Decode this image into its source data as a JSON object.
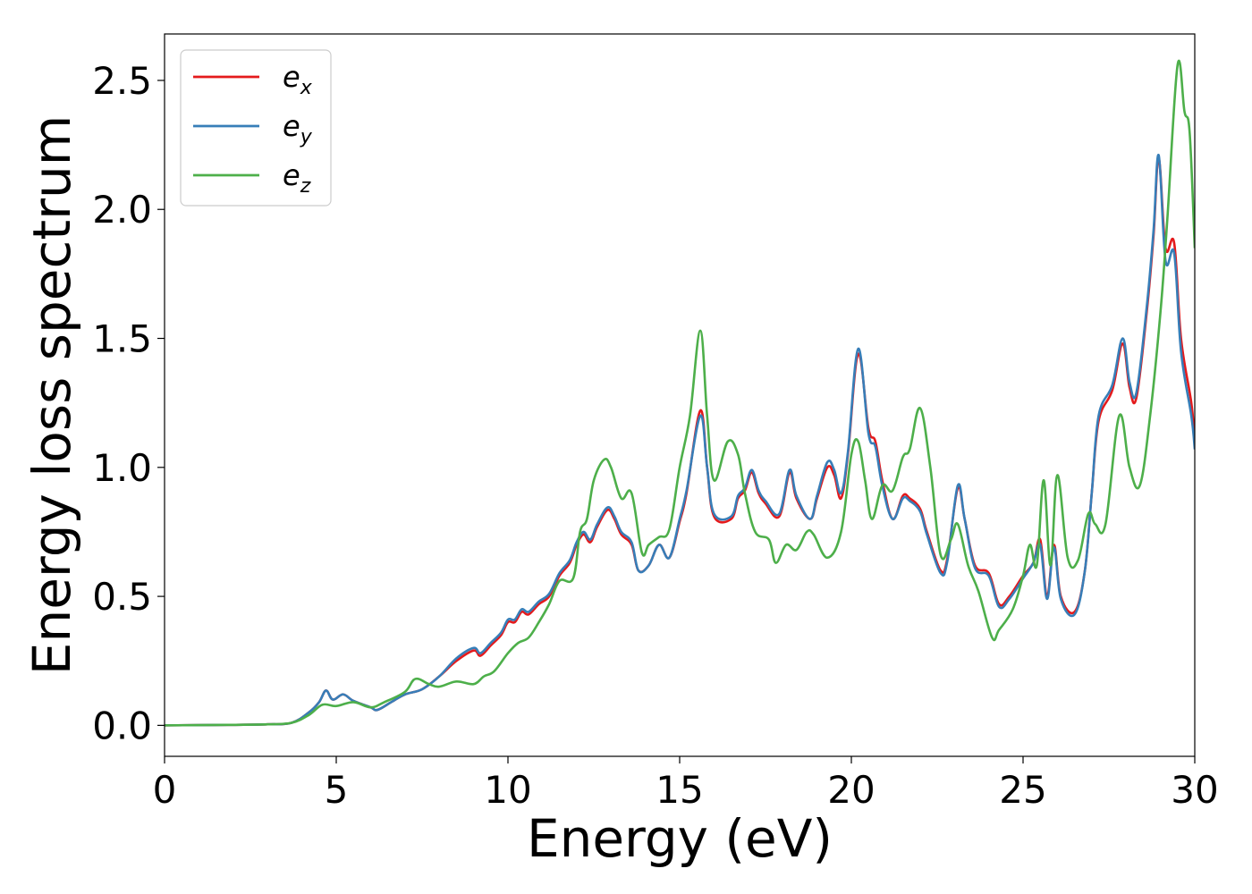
{
  "chart_data": {
    "type": "line",
    "title": "",
    "xlabel": "Energy (eV)",
    "ylabel": "Energy loss spectrum",
    "xlim": [
      0,
      30
    ],
    "ylim": [
      -0.12,
      2.68
    ],
    "xticks": [
      0,
      5,
      10,
      15,
      20,
      25,
      30
    ],
    "xtick_labels": [
      "0",
      "5",
      "10",
      "15",
      "20",
      "25",
      "30"
    ],
    "yticks": [
      0.0,
      0.5,
      1.0,
      1.5,
      2.0,
      2.5
    ],
    "ytick_labels": [
      "0.0",
      "0.5",
      "1.0",
      "1.5",
      "2.0",
      "2.5"
    ],
    "grid": false,
    "legend_position": "top-left",
    "series": [
      {
        "name": "e_x",
        "label_base": "e",
        "label_sub": "x",
        "color": "#e41a1c",
        "points": [
          [
            0,
            0
          ],
          [
            2,
            0.002
          ],
          [
            3,
            0.004
          ],
          [
            3.7,
            0.01
          ],
          [
            4.2,
            0.05
          ],
          [
            4.5,
            0.09
          ],
          [
            4.7,
            0.135
          ],
          [
            4.9,
            0.1
          ],
          [
            5.2,
            0.12
          ],
          [
            5.5,
            0.095
          ],
          [
            6.0,
            0.07
          ],
          [
            6.2,
            0.06
          ],
          [
            6.6,
            0.09
          ],
          [
            7.0,
            0.12
          ],
          [
            7.5,
            0.14
          ],
          [
            8.0,
            0.19
          ],
          [
            8.5,
            0.25
          ],
          [
            9.0,
            0.29
          ],
          [
            9.2,
            0.27
          ],
          [
            9.5,
            0.31
          ],
          [
            9.8,
            0.35
          ],
          [
            10.0,
            0.4
          ],
          [
            10.2,
            0.4
          ],
          [
            10.4,
            0.44
          ],
          [
            10.6,
            0.43
          ],
          [
            10.9,
            0.47
          ],
          [
            11.2,
            0.5
          ],
          [
            11.5,
            0.58
          ],
          [
            11.8,
            0.63
          ],
          [
            12.0,
            0.7
          ],
          [
            12.2,
            0.74
          ],
          [
            12.4,
            0.71
          ],
          [
            12.6,
            0.77
          ],
          [
            12.9,
            0.835
          ],
          [
            13.1,
            0.8
          ],
          [
            13.3,
            0.74
          ],
          [
            13.6,
            0.7
          ],
          [
            13.8,
            0.6
          ],
          [
            14.1,
            0.62
          ],
          [
            14.4,
            0.7
          ],
          [
            14.7,
            0.65
          ],
          [
            15.0,
            0.79
          ],
          [
            15.2,
            0.9
          ],
          [
            15.6,
            1.22
          ],
          [
            15.8,
            1.0
          ],
          [
            16.0,
            0.81
          ],
          [
            16.5,
            0.8
          ],
          [
            16.7,
            0.88
          ],
          [
            16.9,
            0.91
          ],
          [
            17.1,
            0.98
          ],
          [
            17.3,
            0.9
          ],
          [
            17.5,
            0.86
          ],
          [
            17.9,
            0.81
          ],
          [
            18.2,
            0.98
          ],
          [
            18.4,
            0.88
          ],
          [
            18.8,
            0.8
          ],
          [
            19.0,
            0.88
          ],
          [
            19.3,
            1.0
          ],
          [
            19.5,
            0.97
          ],
          [
            19.7,
            0.88
          ],
          [
            19.9,
            1.05
          ],
          [
            20.2,
            1.44
          ],
          [
            20.5,
            1.15
          ],
          [
            20.7,
            1.1
          ],
          [
            20.9,
            0.95
          ],
          [
            21.2,
            0.8
          ],
          [
            21.5,
            0.89
          ],
          [
            21.7,
            0.88
          ],
          [
            22.0,
            0.84
          ],
          [
            22.2,
            0.75
          ],
          [
            22.6,
            0.6
          ],
          [
            22.8,
            0.65
          ],
          [
            23.1,
            0.92
          ],
          [
            23.3,
            0.8
          ],
          [
            23.6,
            0.62
          ],
          [
            24.0,
            0.59
          ],
          [
            24.3,
            0.47
          ],
          [
            24.6,
            0.5
          ],
          [
            25.0,
            0.58
          ],
          [
            25.3,
            0.63
          ],
          [
            25.5,
            0.72
          ],
          [
            25.7,
            0.5
          ],
          [
            25.9,
            0.7
          ],
          [
            26.1,
            0.5
          ],
          [
            26.5,
            0.44
          ],
          [
            26.8,
            0.6
          ],
          [
            27.0,
            0.9
          ],
          [
            27.2,
            1.18
          ],
          [
            27.6,
            1.3
          ],
          [
            27.9,
            1.48
          ],
          [
            28.1,
            1.31
          ],
          [
            28.3,
            1.27
          ],
          [
            28.6,
            1.6
          ],
          [
            28.8,
            1.9
          ],
          [
            28.95,
            2.2
          ],
          [
            29.15,
            1.85
          ],
          [
            29.4,
            1.87
          ],
          [
            29.6,
            1.5
          ],
          [
            29.9,
            1.25
          ],
          [
            30.0,
            1.1
          ]
        ]
      },
      {
        "name": "e_y",
        "label_base": "e",
        "label_sub": "y",
        "color": "#377eb8",
        "points": [
          [
            0,
            0
          ],
          [
            2,
            0.002
          ],
          [
            3,
            0.004
          ],
          [
            3.7,
            0.01
          ],
          [
            4.2,
            0.05
          ],
          [
            4.5,
            0.09
          ],
          [
            4.7,
            0.135
          ],
          [
            4.9,
            0.1
          ],
          [
            5.2,
            0.12
          ],
          [
            5.5,
            0.095
          ],
          [
            6.0,
            0.07
          ],
          [
            6.2,
            0.06
          ],
          [
            6.6,
            0.09
          ],
          [
            7.0,
            0.12
          ],
          [
            7.5,
            0.14
          ],
          [
            8.0,
            0.19
          ],
          [
            8.5,
            0.26
          ],
          [
            9.0,
            0.3
          ],
          [
            9.2,
            0.28
          ],
          [
            9.5,
            0.32
          ],
          [
            9.8,
            0.36
          ],
          [
            10.0,
            0.41
          ],
          [
            10.2,
            0.41
          ],
          [
            10.4,
            0.45
          ],
          [
            10.6,
            0.44
          ],
          [
            10.9,
            0.48
          ],
          [
            11.2,
            0.51
          ],
          [
            11.5,
            0.59
          ],
          [
            11.8,
            0.64
          ],
          [
            12.0,
            0.71
          ],
          [
            12.2,
            0.75
          ],
          [
            12.4,
            0.72
          ],
          [
            12.6,
            0.78
          ],
          [
            12.9,
            0.845
          ],
          [
            13.1,
            0.81
          ],
          [
            13.3,
            0.75
          ],
          [
            13.6,
            0.71
          ],
          [
            13.8,
            0.6
          ],
          [
            14.1,
            0.62
          ],
          [
            14.4,
            0.7
          ],
          [
            14.7,
            0.65
          ],
          [
            15.0,
            0.8
          ],
          [
            15.2,
            0.91
          ],
          [
            15.6,
            1.2
          ],
          [
            15.8,
            1.0
          ],
          [
            16.0,
            0.82
          ],
          [
            16.5,
            0.81
          ],
          [
            16.7,
            0.89
          ],
          [
            16.9,
            0.92
          ],
          [
            17.1,
            0.99
          ],
          [
            17.3,
            0.91
          ],
          [
            17.5,
            0.87
          ],
          [
            17.9,
            0.82
          ],
          [
            18.2,
            0.99
          ],
          [
            18.4,
            0.89
          ],
          [
            18.8,
            0.8
          ],
          [
            19.0,
            0.89
          ],
          [
            19.3,
            1.02
          ],
          [
            19.5,
            0.99
          ],
          [
            19.7,
            0.9
          ],
          [
            19.9,
            1.06
          ],
          [
            20.2,
            1.46
          ],
          [
            20.5,
            1.13
          ],
          [
            20.7,
            1.08
          ],
          [
            20.9,
            0.93
          ],
          [
            21.2,
            0.8
          ],
          [
            21.5,
            0.88
          ],
          [
            21.7,
            0.87
          ],
          [
            22.0,
            0.83
          ],
          [
            22.2,
            0.74
          ],
          [
            22.6,
            0.59
          ],
          [
            22.8,
            0.64
          ],
          [
            23.1,
            0.93
          ],
          [
            23.3,
            0.8
          ],
          [
            23.6,
            0.61
          ],
          [
            24.0,
            0.58
          ],
          [
            24.3,
            0.46
          ],
          [
            24.6,
            0.49
          ],
          [
            25.0,
            0.57
          ],
          [
            25.3,
            0.63
          ],
          [
            25.5,
            0.7
          ],
          [
            25.7,
            0.49
          ],
          [
            25.9,
            0.69
          ],
          [
            26.1,
            0.49
          ],
          [
            26.5,
            0.43
          ],
          [
            26.8,
            0.6
          ],
          [
            27.0,
            0.9
          ],
          [
            27.2,
            1.2
          ],
          [
            27.6,
            1.32
          ],
          [
            27.9,
            1.5
          ],
          [
            28.1,
            1.33
          ],
          [
            28.3,
            1.29
          ],
          [
            28.6,
            1.62
          ],
          [
            28.8,
            1.92
          ],
          [
            28.95,
            2.21
          ],
          [
            29.15,
            1.8
          ],
          [
            29.4,
            1.83
          ],
          [
            29.6,
            1.45
          ],
          [
            29.9,
            1.2
          ],
          [
            30.0,
            1.07
          ]
        ]
      },
      {
        "name": "e_z",
        "label_base": "e",
        "label_sub": "z",
        "color": "#4daf4a",
        "points": [
          [
            0,
            0
          ],
          [
            2,
            0.002
          ],
          [
            3,
            0.004
          ],
          [
            3.7,
            0.01
          ],
          [
            4.2,
            0.04
          ],
          [
            4.6,
            0.08
          ],
          [
            5.0,
            0.075
          ],
          [
            5.5,
            0.09
          ],
          [
            6.0,
            0.07
          ],
          [
            6.4,
            0.09
          ],
          [
            7.0,
            0.13
          ],
          [
            7.3,
            0.18
          ],
          [
            7.7,
            0.16
          ],
          [
            8.0,
            0.15
          ],
          [
            8.5,
            0.17
          ],
          [
            9.0,
            0.16
          ],
          [
            9.3,
            0.19
          ],
          [
            9.6,
            0.21
          ],
          [
            10.0,
            0.28
          ],
          [
            10.3,
            0.32
          ],
          [
            10.6,
            0.34
          ],
          [
            10.9,
            0.4
          ],
          [
            11.2,
            0.47
          ],
          [
            11.5,
            0.56
          ],
          [
            11.9,
            0.57
          ],
          [
            12.1,
            0.75
          ],
          [
            12.3,
            0.8
          ],
          [
            12.5,
            0.95
          ],
          [
            12.8,
            1.03
          ],
          [
            13.0,
            1.0
          ],
          [
            13.3,
            0.88
          ],
          [
            13.6,
            0.9
          ],
          [
            13.9,
            0.67
          ],
          [
            14.1,
            0.7
          ],
          [
            14.4,
            0.73
          ],
          [
            14.7,
            0.76
          ],
          [
            15.0,
            1.0
          ],
          [
            15.3,
            1.2
          ],
          [
            15.6,
            1.53
          ],
          [
            15.8,
            1.2
          ],
          [
            16.0,
            0.95
          ],
          [
            16.4,
            1.1
          ],
          [
            16.7,
            1.05
          ],
          [
            16.9,
            0.9
          ],
          [
            17.2,
            0.75
          ],
          [
            17.6,
            0.72
          ],
          [
            17.8,
            0.63
          ],
          [
            18.1,
            0.7
          ],
          [
            18.4,
            0.68
          ],
          [
            18.7,
            0.75
          ],
          [
            18.9,
            0.74
          ],
          [
            19.3,
            0.65
          ],
          [
            19.7,
            0.75
          ],
          [
            20.0,
            1.05
          ],
          [
            20.2,
            1.1
          ],
          [
            20.4,
            0.95
          ],
          [
            20.6,
            0.8
          ],
          [
            20.9,
            0.93
          ],
          [
            21.2,
            0.91
          ],
          [
            21.5,
            1.04
          ],
          [
            21.7,
            1.07
          ],
          [
            22.0,
            1.23
          ],
          [
            22.3,
            1.0
          ],
          [
            22.6,
            0.66
          ],
          [
            22.9,
            0.72
          ],
          [
            23.1,
            0.78
          ],
          [
            23.4,
            0.62
          ],
          [
            23.7,
            0.52
          ],
          [
            24.1,
            0.34
          ],
          [
            24.3,
            0.37
          ],
          [
            24.7,
            0.45
          ],
          [
            25.0,
            0.58
          ],
          [
            25.2,
            0.7
          ],
          [
            25.4,
            0.62
          ],
          [
            25.6,
            0.95
          ],
          [
            25.8,
            0.62
          ],
          [
            26.0,
            0.97
          ],
          [
            26.3,
            0.65
          ],
          [
            26.6,
            0.64
          ],
          [
            26.9,
            0.82
          ],
          [
            27.1,
            0.78
          ],
          [
            27.4,
            0.78
          ],
          [
            27.8,
            1.2
          ],
          [
            28.1,
            1.0
          ],
          [
            28.4,
            0.93
          ],
          [
            28.7,
            1.2
          ],
          [
            29.0,
            1.6
          ],
          [
            29.2,
            1.96
          ],
          [
            29.5,
            2.56
          ],
          [
            29.7,
            2.38
          ],
          [
            29.85,
            2.3
          ],
          [
            30.0,
            1.85
          ]
        ]
      }
    ]
  }
}
